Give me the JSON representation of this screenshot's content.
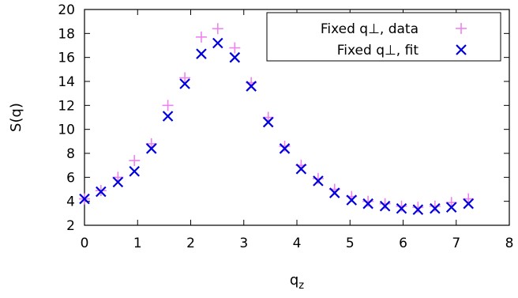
{
  "chart_data": {
    "type": "scatter",
    "title": "",
    "xlabel": "q",
    "xlabel_sub": "z",
    "ylabel": "S(q)",
    "xlim": [
      0,
      8
    ],
    "ylim": [
      2,
      20
    ],
    "xticks": [
      0,
      1,
      2,
      3,
      4,
      5,
      6,
      7,
      8
    ],
    "yticks": [
      2,
      4,
      6,
      8,
      10,
      12,
      14,
      16,
      18,
      20
    ],
    "grid": false,
    "legend_position": "top-right",
    "series": [
      {
        "name": "Fixed q⊥, data",
        "marker": "plus",
        "color": "#ee82ee",
        "x": [
          0.0,
          0.31,
          0.63,
          0.94,
          1.26,
          1.57,
          1.89,
          2.2,
          2.51,
          2.83,
          3.14,
          3.46,
          3.77,
          4.08,
          4.4,
          4.71,
          5.03,
          5.34,
          5.66,
          5.97,
          6.28,
          6.6,
          6.91,
          7.23
        ],
        "y": [
          4.2,
          4.9,
          6.0,
          7.4,
          8.8,
          12.0,
          14.3,
          17.7,
          18.4,
          16.8,
          13.9,
          11.0,
          8.6,
          7.0,
          5.9,
          5.0,
          4.4,
          4.0,
          3.8,
          3.6,
          3.5,
          3.6,
          3.9,
          4.2
        ]
      },
      {
        "name": "Fixed q⊥, fit",
        "marker": "cross",
        "color": "#0000dd",
        "x": [
          0.0,
          0.31,
          0.63,
          0.94,
          1.26,
          1.57,
          1.89,
          2.2,
          2.51,
          2.83,
          3.14,
          3.46,
          3.77,
          4.08,
          4.4,
          4.71,
          5.03,
          5.34,
          5.66,
          5.97,
          6.28,
          6.6,
          6.91,
          7.23
        ],
        "y": [
          4.2,
          4.8,
          5.6,
          6.5,
          8.4,
          11.1,
          13.8,
          16.3,
          17.2,
          16.0,
          13.6,
          10.6,
          8.4,
          6.7,
          5.7,
          4.7,
          4.1,
          3.8,
          3.6,
          3.4,
          3.3,
          3.4,
          3.5,
          3.8
        ]
      }
    ]
  }
}
